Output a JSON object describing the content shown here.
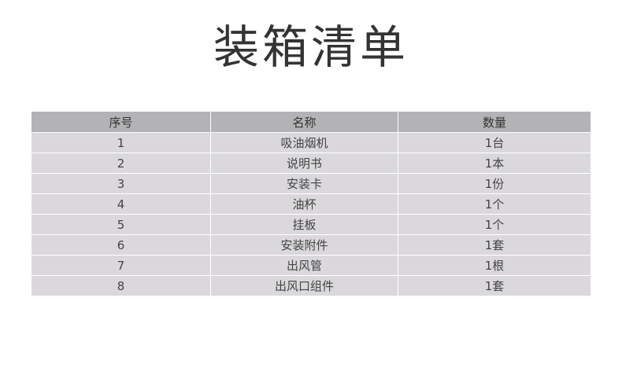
{
  "title": "装箱清单",
  "table": {
    "headers": [
      "序号",
      "名称",
      "数量"
    ],
    "rows": [
      [
        "1",
        "吸油烟机",
        "1台"
      ],
      [
        "2",
        "说明书",
        "1本"
      ],
      [
        "3",
        "安装卡",
        "1份"
      ],
      [
        "4",
        "油杯",
        "1个"
      ],
      [
        "5",
        "挂板",
        "1个"
      ],
      [
        "6",
        "安装附件",
        "1套"
      ],
      [
        "7",
        "出风管",
        "1根"
      ],
      [
        "8",
        "出风口组件",
        "1套"
      ]
    ]
  },
  "colors": {
    "header_bg": "#b3b2b4",
    "row_bg": "#dad8db",
    "title": "#333333"
  }
}
